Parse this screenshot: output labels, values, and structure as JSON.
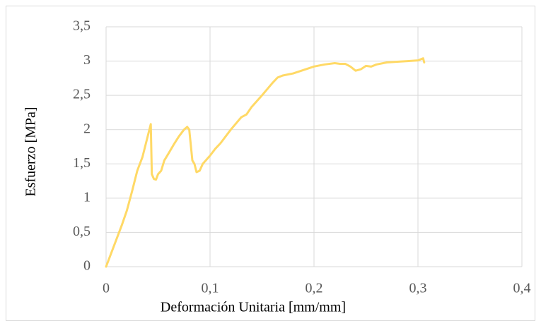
{
  "chart_data": {
    "type": "line",
    "x_label": "Deformación Unitaria [mm/mm]",
    "y_label": "Esfuerzo [MPa]",
    "x": [
      0,
      0.005,
      0.01,
      0.015,
      0.02,
      0.025,
      0.03,
      0.035,
      0.04,
      0.043,
      0.044,
      0.046,
      0.048,
      0.05,
      0.053,
      0.056,
      0.06,
      0.065,
      0.07,
      0.075,
      0.078,
      0.08,
      0.083,
      0.085,
      0.087,
      0.09,
      0.093,
      0.1,
      0.105,
      0.11,
      0.12,
      0.13,
      0.135,
      0.14,
      0.15,
      0.16,
      0.165,
      0.17,
      0.18,
      0.19,
      0.2,
      0.21,
      0.22,
      0.225,
      0.23,
      0.235,
      0.24,
      0.245,
      0.25,
      0.255,
      0.26,
      0.27,
      0.28,
      0.29,
      0.3,
      0.305,
      0.306
    ],
    "series": [
      {
        "color": "#ffd966",
        "values": [
          0,
          0.2,
          0.4,
          0.6,
          0.82,
          1.1,
          1.4,
          1.6,
          1.9,
          2.08,
          1.35,
          1.28,
          1.27,
          1.35,
          1.4,
          1.55,
          1.65,
          1.78,
          1.9,
          2.0,
          2.04,
          2.0,
          1.55,
          1.5,
          1.38,
          1.4,
          1.5,
          1.62,
          1.72,
          1.8,
          2.0,
          2.18,
          2.22,
          2.33,
          2.5,
          2.68,
          2.76,
          2.79,
          2.82,
          2.87,
          2.92,
          2.95,
          2.97,
          2.96,
          2.96,
          2.92,
          2.86,
          2.88,
          2.93,
          2.92,
          2.95,
          2.98,
          2.99,
          3.0,
          3.01,
          3.04,
          2.98
        ]
      }
    ],
    "xlim": [
      0,
      0.4
    ],
    "xticks": [
      0,
      {
        "value": 0.1,
        "label": "0,1"
      },
      {
        "value": 0.2,
        "label": "0,2"
      },
      {
        "value": 0.3,
        "label": "0,3"
      },
      {
        "value": 0.4,
        "label": "0,4"
      }
    ],
    "ylim": [
      0,
      3.5
    ],
    "yticks": [
      0,
      {
        "value": 0.5,
        "label": "0,5"
      },
      1,
      {
        "value": 1.5,
        "label": "1,5"
      },
      2,
      {
        "value": 2.5,
        "label": "2,5"
      },
      3,
      {
        "value": 3.5,
        "label": "3,5"
      }
    ],
    "grid": true
  }
}
